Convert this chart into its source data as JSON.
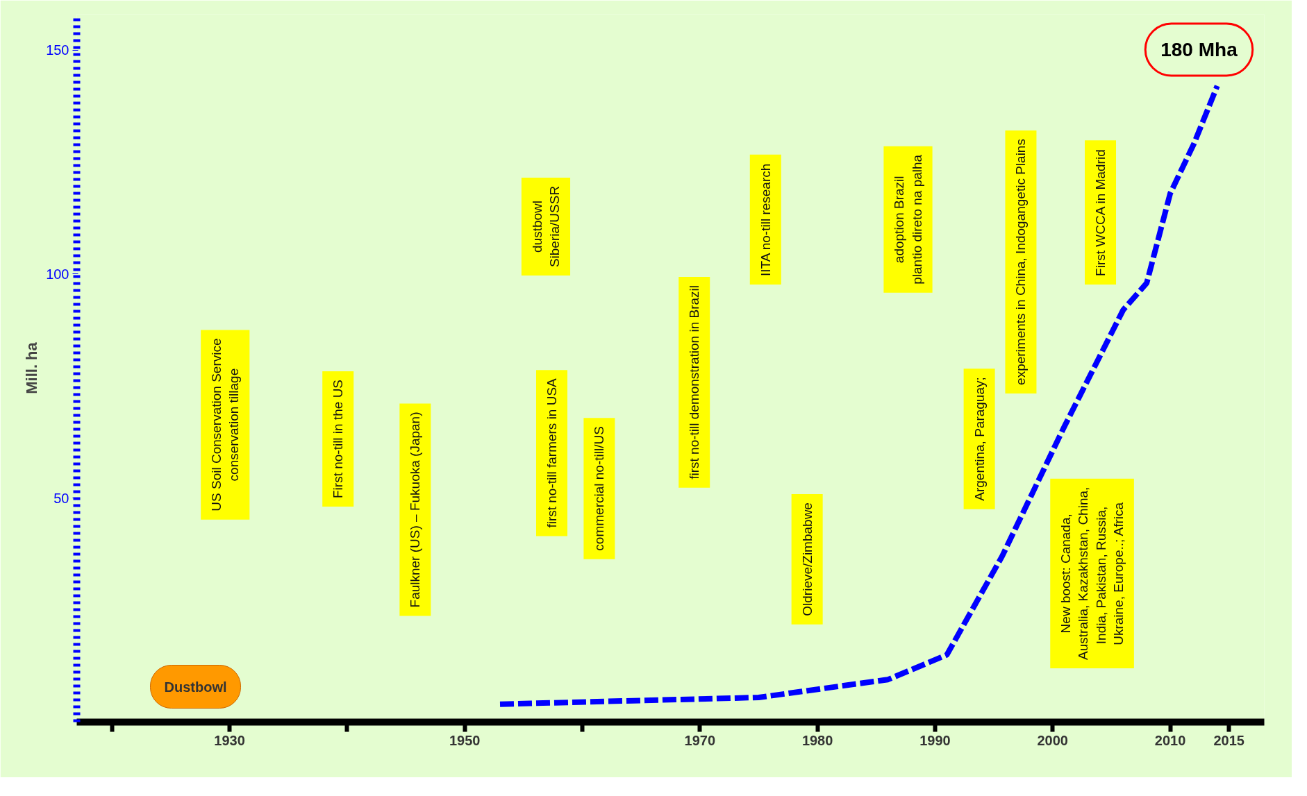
{
  "chart_data": {
    "type": "line",
    "ylabel": "Mill. ha",
    "x": [
      1953,
      1975,
      1986,
      1991,
      1995.7,
      2001,
      2006,
      2008,
      2010,
      2012,
      2014
    ],
    "series": [
      {
        "color": "#0000ff",
        "values": [
          4,
          5.5,
          9.5,
          15,
          37,
          66,
          92,
          98,
          118,
          129,
          142
        ]
      }
    ],
    "line_style": "dashed",
    "marker": "none",
    "grid": false,
    "xlim": [
      1917,
      2018
    ],
    "ylim": [
      0,
      158
    ],
    "xticks": [
      {
        "value": 1920,
        "label": null
      },
      1930,
      {
        "value": 1940,
        "label": null
      },
      1950,
      {
        "value": 1960,
        "label": null
      },
      1970,
      1980,
      1990,
      2000,
      2010,
      2015
    ],
    "yticks": [
      50,
      100,
      150
    ],
    "annotations": [
      "US Soil Conservation Service\nconservation tillage",
      "First no-till in the US",
      "Faulkner (US) – Fukuoka (Japan)",
      "dustbowl\nSiberia/USSR",
      "first no-till farmers in USA",
      "commercial no-till/US",
      "first no-till demonstration in Brazil",
      "IITA no-till research",
      "Oldrieve/Zimbabwe",
      "adoption Brazil\nplantio direto na palha",
      "Argentina, Paraguay;",
      "experiments in China, Indogangetic Plains",
      "First WCCA in Madrid",
      "New boost: Canada,\nAustralia, Kazakhstan, China,\nIndia, Pakistan,  Russia,\nUkraine, Europe..; Africa",
      "Dustbowl",
      "180 Mha"
    ]
  }
}
